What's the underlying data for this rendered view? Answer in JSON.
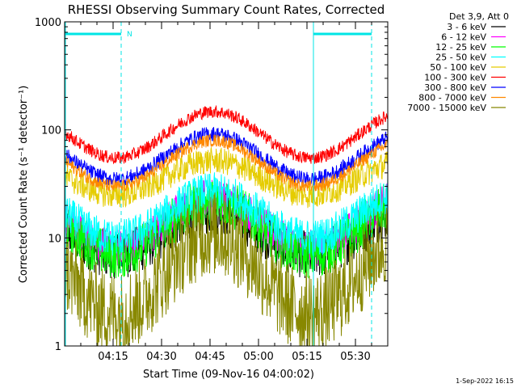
{
  "chart_data": {
    "type": "line",
    "title": "RHESSI Observing Summary Count Rates, Corrected",
    "xlabel": "Start Time (09-Nov-16 04:00:02)",
    "ylabel": "Corrected Count Rate (s⁻¹ detector⁻¹)",
    "yscale": "log",
    "ylim": [
      1,
      1000
    ],
    "xlim_minutes": [
      0,
      100
    ],
    "x_ticks": [
      "04:15",
      "04:30",
      "04:45",
      "05:00",
      "05:15",
      "05:30"
    ],
    "y_ticks": [
      "1",
      "10",
      "100",
      "1000"
    ],
    "legend_header": "Det 3,9, Att 0",
    "legend_position": "top-right",
    "grid": false,
    "annotations": {
      "night_bar_label": "N",
      "night_bars_minutes": [
        [
          0,
          17.5
        ],
        [
          77,
          95
        ]
      ],
      "dashed_lines_minutes": [
        17.5,
        77,
        95
      ]
    },
    "series": [
      {
        "name": "3 - 6 keV",
        "color": "#000000",
        "min_value": 7,
        "max_value": 18,
        "noise": 0.45
      },
      {
        "name": "6 - 12 keV",
        "color": "#ff00ff",
        "min_value": 8,
        "max_value": 24,
        "noise": 0.35
      },
      {
        "name": "12 - 25 keV",
        "color": "#00ff00",
        "min_value": 7,
        "max_value": 22,
        "noise": 0.45
      },
      {
        "name": "25 - 50 keV",
        "color": "#00ffff",
        "min_value": 10,
        "max_value": 27,
        "noise": 0.35
      },
      {
        "name": "50 - 100 keV",
        "color": "#e5cc00",
        "min_value": 25,
        "max_value": 52,
        "noise": 0.25
      },
      {
        "name": "100 - 300 keV",
        "color": "#ff0000",
        "min_value": 55,
        "max_value": 148,
        "noise": 0.12
      },
      {
        "name": "300 - 800 keV",
        "color": "#0000ff",
        "min_value": 35,
        "max_value": 92,
        "noise": 0.14
      },
      {
        "name": "800 - 7000 keV",
        "color": "#ff8800",
        "min_value": 30,
        "max_value": 80,
        "noise": 0.12
      },
      {
        "name": "7000 - 15000 keV",
        "color": "#888800",
        "min_value": 2,
        "max_value": 11,
        "noise": 0.8
      }
    ],
    "footer_timestamp": "1-Sep-2022 16:15"
  }
}
